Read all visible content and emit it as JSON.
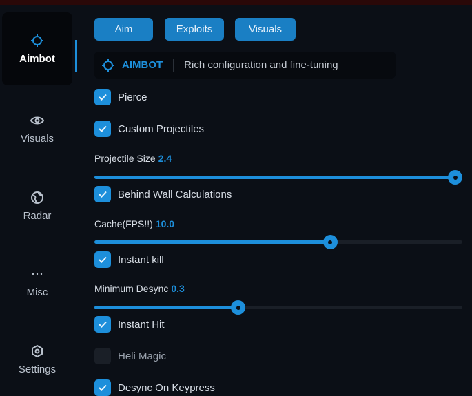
{
  "sidebar": {
    "items": [
      {
        "label": "Aimbot",
        "icon": "crosshair-icon",
        "active": true
      },
      {
        "label": "Visuals",
        "icon": "eye-icon"
      },
      {
        "label": "Radar",
        "icon": "globe-icon"
      },
      {
        "label": "Misc",
        "icon": "ellipsis-icon"
      },
      {
        "label": "Settings",
        "icon": "gear-icon"
      }
    ]
  },
  "tabs": [
    "Aim",
    "Exploits",
    "Visuals"
  ],
  "header": {
    "title": "AIMBOT",
    "description": "Rich configuration and fine-tuning"
  },
  "options": {
    "pierce": {
      "label": "Pierce",
      "checked": true
    },
    "custom_projectiles": {
      "label": "Custom Projectiles",
      "checked": true
    },
    "projectile_size": {
      "label": "Projectile Size",
      "value": "2.4",
      "fraction": 0.98
    },
    "behind_wall": {
      "label": "Behind Wall Calculations",
      "checked": true
    },
    "cache": {
      "label": "Cache(FPS!!)",
      "value": "10.0",
      "fraction": 0.64
    },
    "instant_kill": {
      "label": "Instant kill",
      "checked": true
    },
    "min_desync": {
      "label": "Minimum Desync",
      "value": "0.3",
      "fraction": 0.39
    },
    "instant_hit": {
      "label": "Instant Hit",
      "checked": true
    },
    "heli_magic": {
      "label": "Heli Magic",
      "checked": false
    },
    "desync_keypress": {
      "label": "Desync On Keypress",
      "checked": true
    }
  },
  "colors": {
    "accent": "#1d8fdb",
    "background": "#0b0f16"
  }
}
